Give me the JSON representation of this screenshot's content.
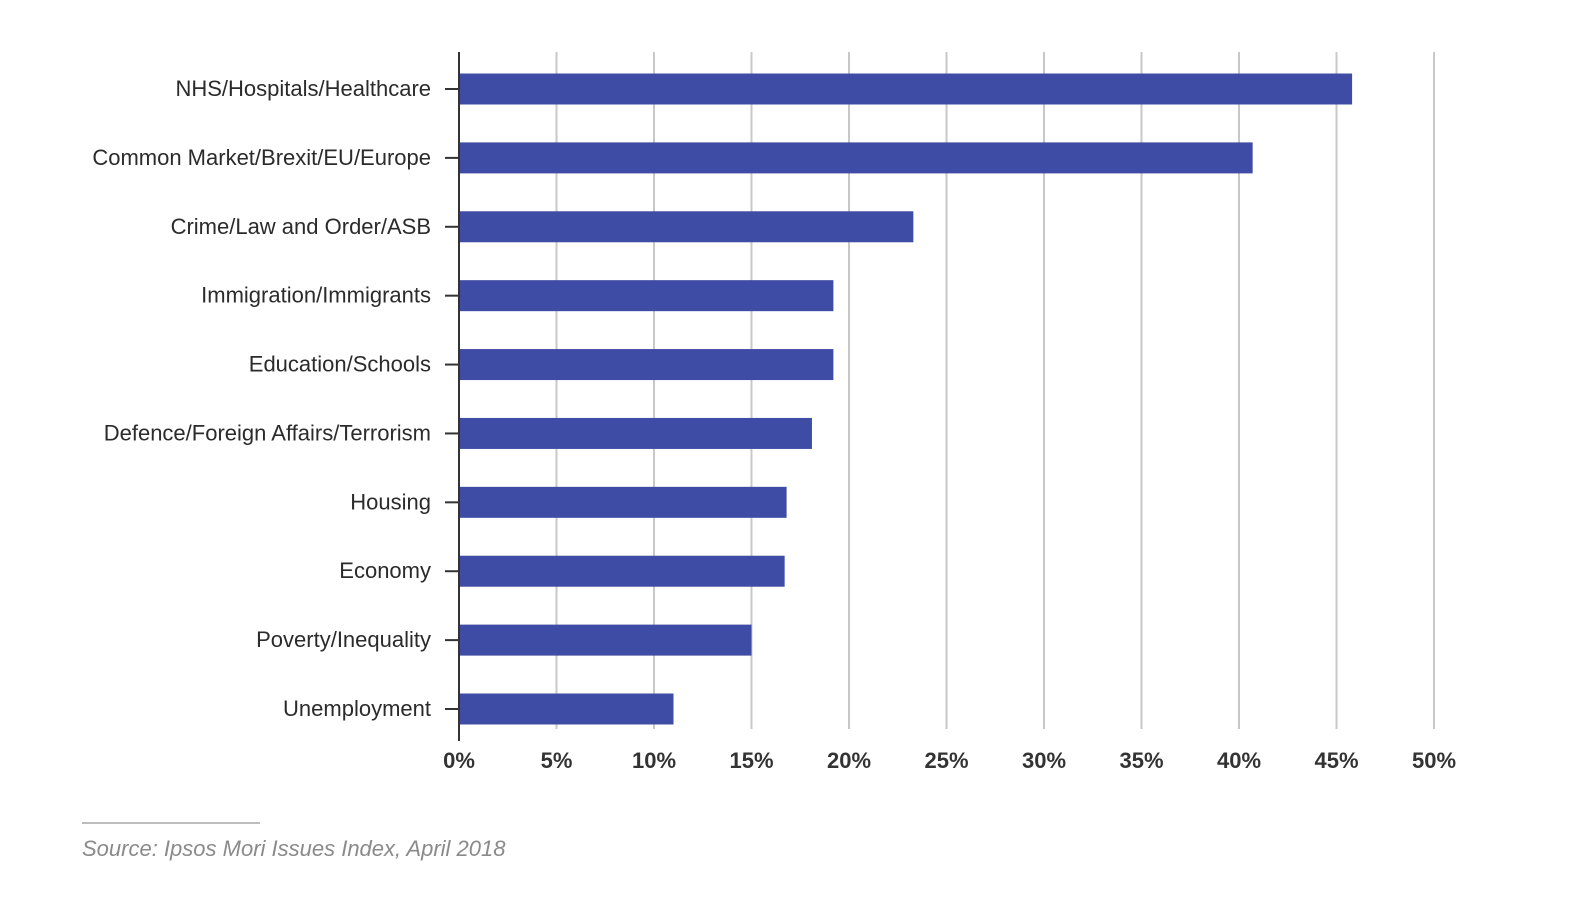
{
  "chart_data": {
    "type": "bar",
    "orientation": "horizontal",
    "categories": [
      "NHS/Hospitals/Healthcare",
      "Common Market/Brexit/EU/Europe",
      "Crime/Law and Order/ASB",
      "Immigration/Immigrants",
      "Education/Schools",
      "Defence/Foreign Affairs/Terrorism",
      "Housing",
      "Economy",
      "Poverty/Inequality",
      "Unemployment"
    ],
    "values": [
      45.8,
      40.7,
      23.3,
      19.2,
      19.2,
      18.1,
      16.8,
      16.7,
      15.0,
      11.0
    ],
    "xlim": [
      0,
      50
    ],
    "xticks": [
      0,
      5,
      10,
      15,
      20,
      25,
      30,
      35,
      40,
      45,
      50
    ],
    "xtick_labels": [
      "0%",
      "5%",
      "10%",
      "15%",
      "20%",
      "25%",
      "30%",
      "35%",
      "40%",
      "45%",
      "50%"
    ],
    "grid": "vertical",
    "bar_color": "#3f4ca6",
    "grid_color": "#c8c8c8",
    "axis_color": "#333333",
    "title": "",
    "xlabel": "",
    "ylabel": ""
  },
  "source": "Source:  Ipsos Mori Issues Index, April 2018"
}
